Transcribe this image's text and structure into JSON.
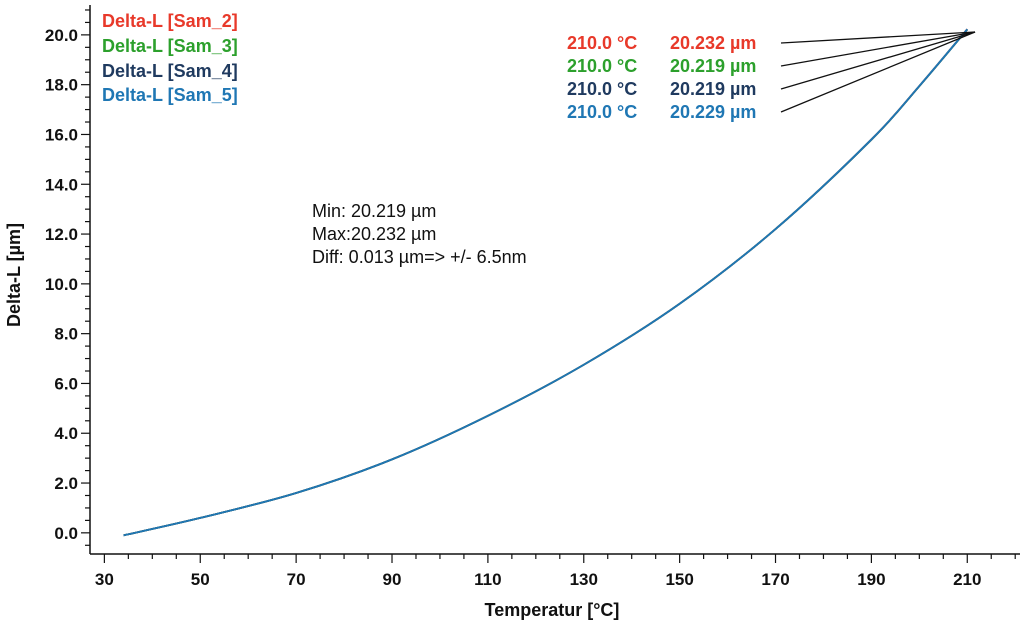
{
  "chart_data": {
    "type": "line",
    "xlabel": "Temperatur [°C]",
    "ylabel": "Delta-L [µm]",
    "xlim": [
      27,
      221
    ],
    "ylim": [
      -0.85,
      21.2
    ],
    "x_ticks": [
      "30",
      "50",
      "70",
      "90",
      "110",
      "130",
      "150",
      "170",
      "190",
      "210"
    ],
    "y_ticks": [
      "0.0",
      "2.0",
      "4.0",
      "6.0",
      "8.0",
      "10.0",
      "12.0",
      "14.0",
      "16.0",
      "18.0",
      "20.0"
    ],
    "grid": false,
    "legend_position": "top-left",
    "series": [
      {
        "name": "Delta-L [Sam_2]",
        "color": "#e8392a",
        "x": [
          34,
          50,
          70,
          90,
          110,
          130,
          150,
          170,
          190,
          200,
          210
        ],
        "y": [
          -0.1,
          0.6,
          1.6,
          2.95,
          4.7,
          6.75,
          9.2,
          12.2,
          15.8,
          17.95,
          20.232
        ]
      },
      {
        "name": "Delta-L [Sam_3]",
        "color": "#2ca02c",
        "x": [
          34,
          50,
          70,
          90,
          110,
          130,
          150,
          170,
          190,
          200,
          210
        ],
        "y": [
          -0.1,
          0.6,
          1.6,
          2.95,
          4.7,
          6.75,
          9.2,
          12.2,
          15.79,
          17.94,
          20.219
        ]
      },
      {
        "name": "Delta-L [Sam_4]",
        "color": "#1f3a5f",
        "x": [
          34,
          50,
          70,
          90,
          110,
          130,
          150,
          170,
          190,
          200,
          210
        ],
        "y": [
          -0.1,
          0.6,
          1.6,
          2.95,
          4.7,
          6.75,
          9.2,
          12.2,
          15.79,
          17.94,
          20.219
        ]
      },
      {
        "name": "Delta-L [Sam_5]",
        "color": "#1f77b4",
        "x": [
          34,
          50,
          70,
          90,
          110,
          130,
          150,
          170,
          190,
          200,
          210
        ],
        "y": [
          -0.1,
          0.6,
          1.6,
          2.95,
          4.7,
          6.75,
          9.2,
          12.2,
          15.8,
          17.95,
          20.229
        ]
      }
    ],
    "annotations": [
      {
        "temp": "210.0 °C",
        "value": "20.232 µm",
        "color": "#e8392a"
      },
      {
        "temp": "210.0 °C",
        "value": "20.219 µm",
        "color": "#2ca02c"
      },
      {
        "temp": "210.0 °C",
        "value": "20.219 µm",
        "color": "#1f3a5f"
      },
      {
        "temp": "210.0 °C",
        "value": "20.229 µm",
        "color": "#1f77b4"
      }
    ],
    "note": {
      "line1": "Min: 20.219 µm",
      "line2": "Max:20.232 µm",
      "line3": "Diff: 0.013 µm=> +/- 6.5nm"
    }
  }
}
